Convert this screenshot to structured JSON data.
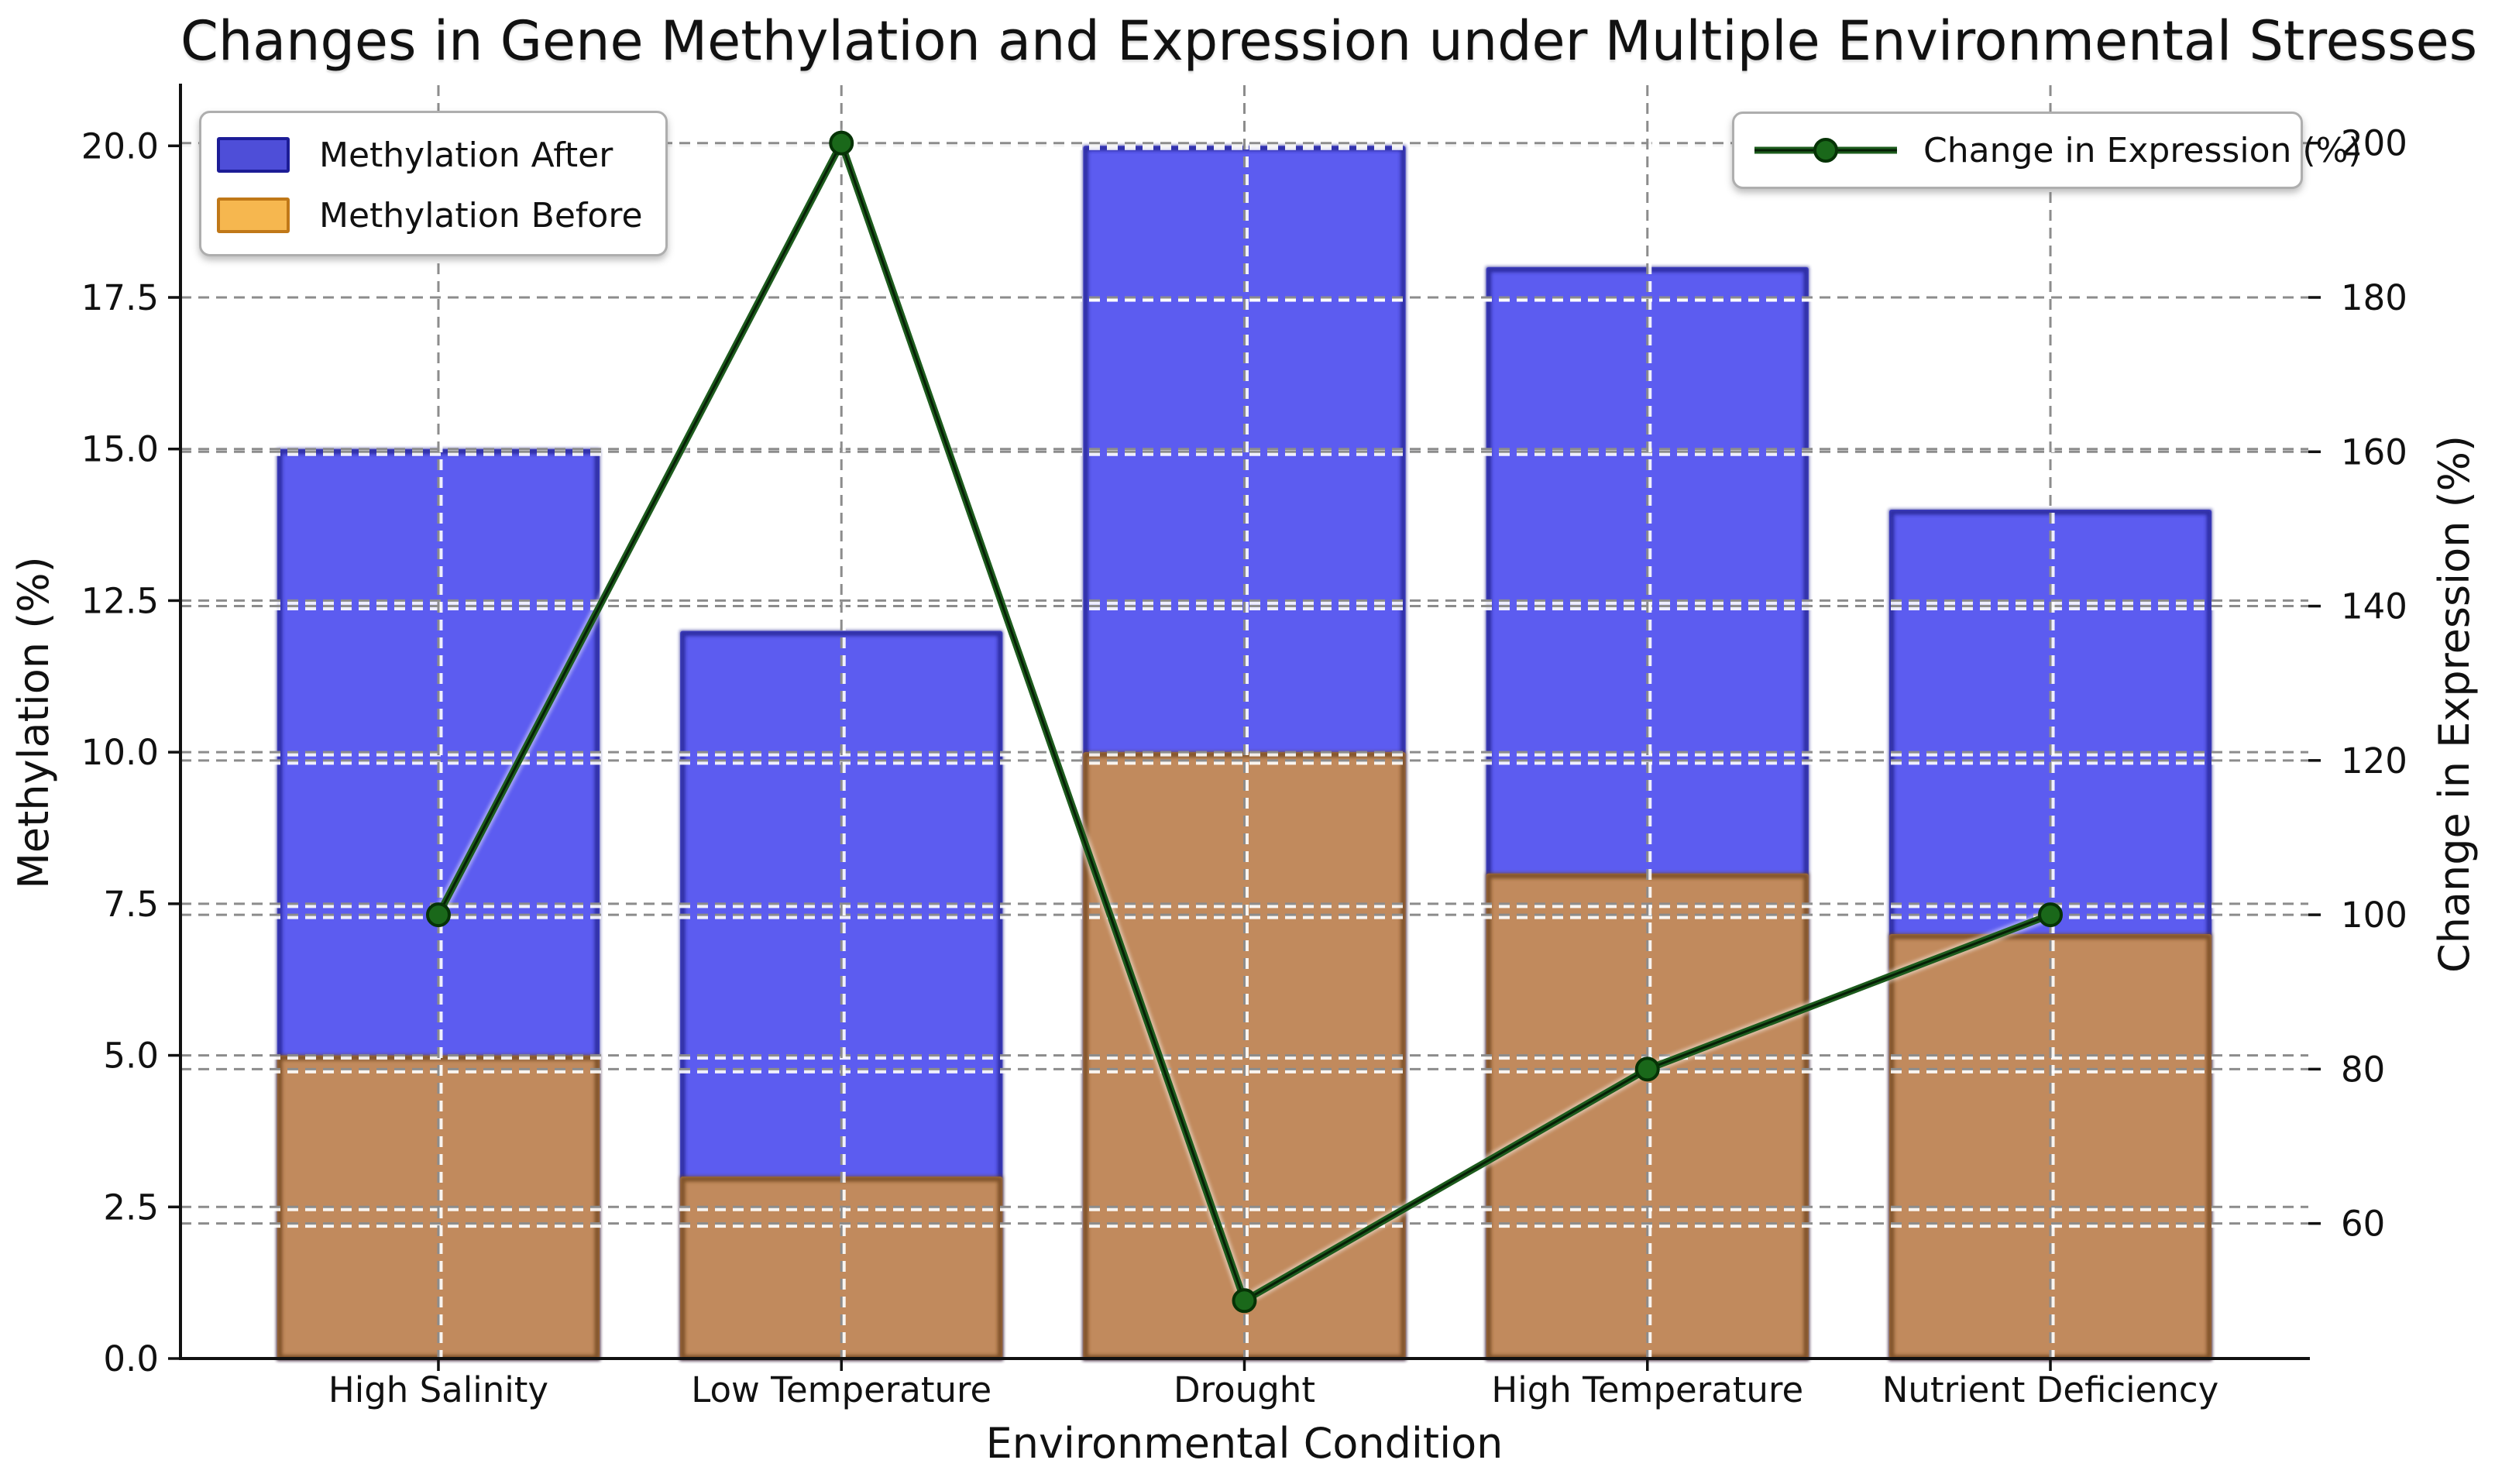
{
  "chart_data": {
    "type": "bar",
    "subtype": "overlaid-bars-with-line-on-secondary-axis",
    "title": "Changes in Gene Methylation and Expression under Multiple Environmental Stresses",
    "xlabel": "Environmental Condition",
    "categories": [
      "High Salinity",
      "Low Temperature",
      "Drought",
      "High Temperature",
      "Nutrient Deficiency"
    ],
    "bar_series": [
      {
        "name": "Methylation After",
        "axis": "left",
        "values": [
          15,
          12,
          20,
          18,
          14
        ],
        "fill": "#5c5cf0",
        "edge": "#22228f",
        "legend_swatch": "#4e4ed8"
      },
      {
        "name": "Methylation Before",
        "axis": "left",
        "values": [
          5,
          3,
          10,
          8,
          7
        ],
        "fill": "#c18a5d",
        "edge": "#70451f",
        "legend_swatch": "#f6b74f"
      }
    ],
    "line_series": [
      {
        "name": "Change in Expression (%)",
        "axis": "right",
        "values": [
          100,
          200,
          50,
          80,
          100
        ],
        "color": "#1d5c1d",
        "core_color": "#061f06",
        "marker": "circle",
        "marker_fill": "#1a681a",
        "marker_edge": "#063306"
      }
    ],
    "left_axis": {
      "label": "Methylation (%)",
      "ticks": [
        "0.0",
        "2.5",
        "5.0",
        "7.5",
        "10.0",
        "12.5",
        "15.0",
        "17.5",
        "20.0"
      ],
      "tick_values": [
        0,
        2.5,
        5,
        7.5,
        10,
        12.5,
        15,
        17.5,
        20
      ],
      "lim": [
        0,
        21
      ]
    },
    "right_axis": {
      "label": "Change in Expression (%)",
      "ticks": [
        "60",
        "80",
        "100",
        "120",
        "140",
        "160",
        "180",
        "200"
      ],
      "tick_values": [
        60,
        80,
        100,
        120,
        140,
        160,
        180,
        200
      ],
      "lim": [
        42.5,
        207.5
      ]
    },
    "grid": {
      "show": true,
      "style": "dashed",
      "color": "#8c8c8c",
      "halo_color": "#ffffff",
      "vertical_at_categories": true
    },
    "legend_left_position": "upper left",
    "legend_right_position": "upper right",
    "bar_width_fraction": 0.8,
    "text_color": "#111111",
    "background": "#ffffff"
  },
  "legend_left": {
    "items": [
      {
        "label": "Methylation After"
      },
      {
        "label": "Methylation Before"
      }
    ]
  },
  "legend_right": {
    "items": [
      {
        "label": "Change in Expression (%)"
      }
    ]
  }
}
